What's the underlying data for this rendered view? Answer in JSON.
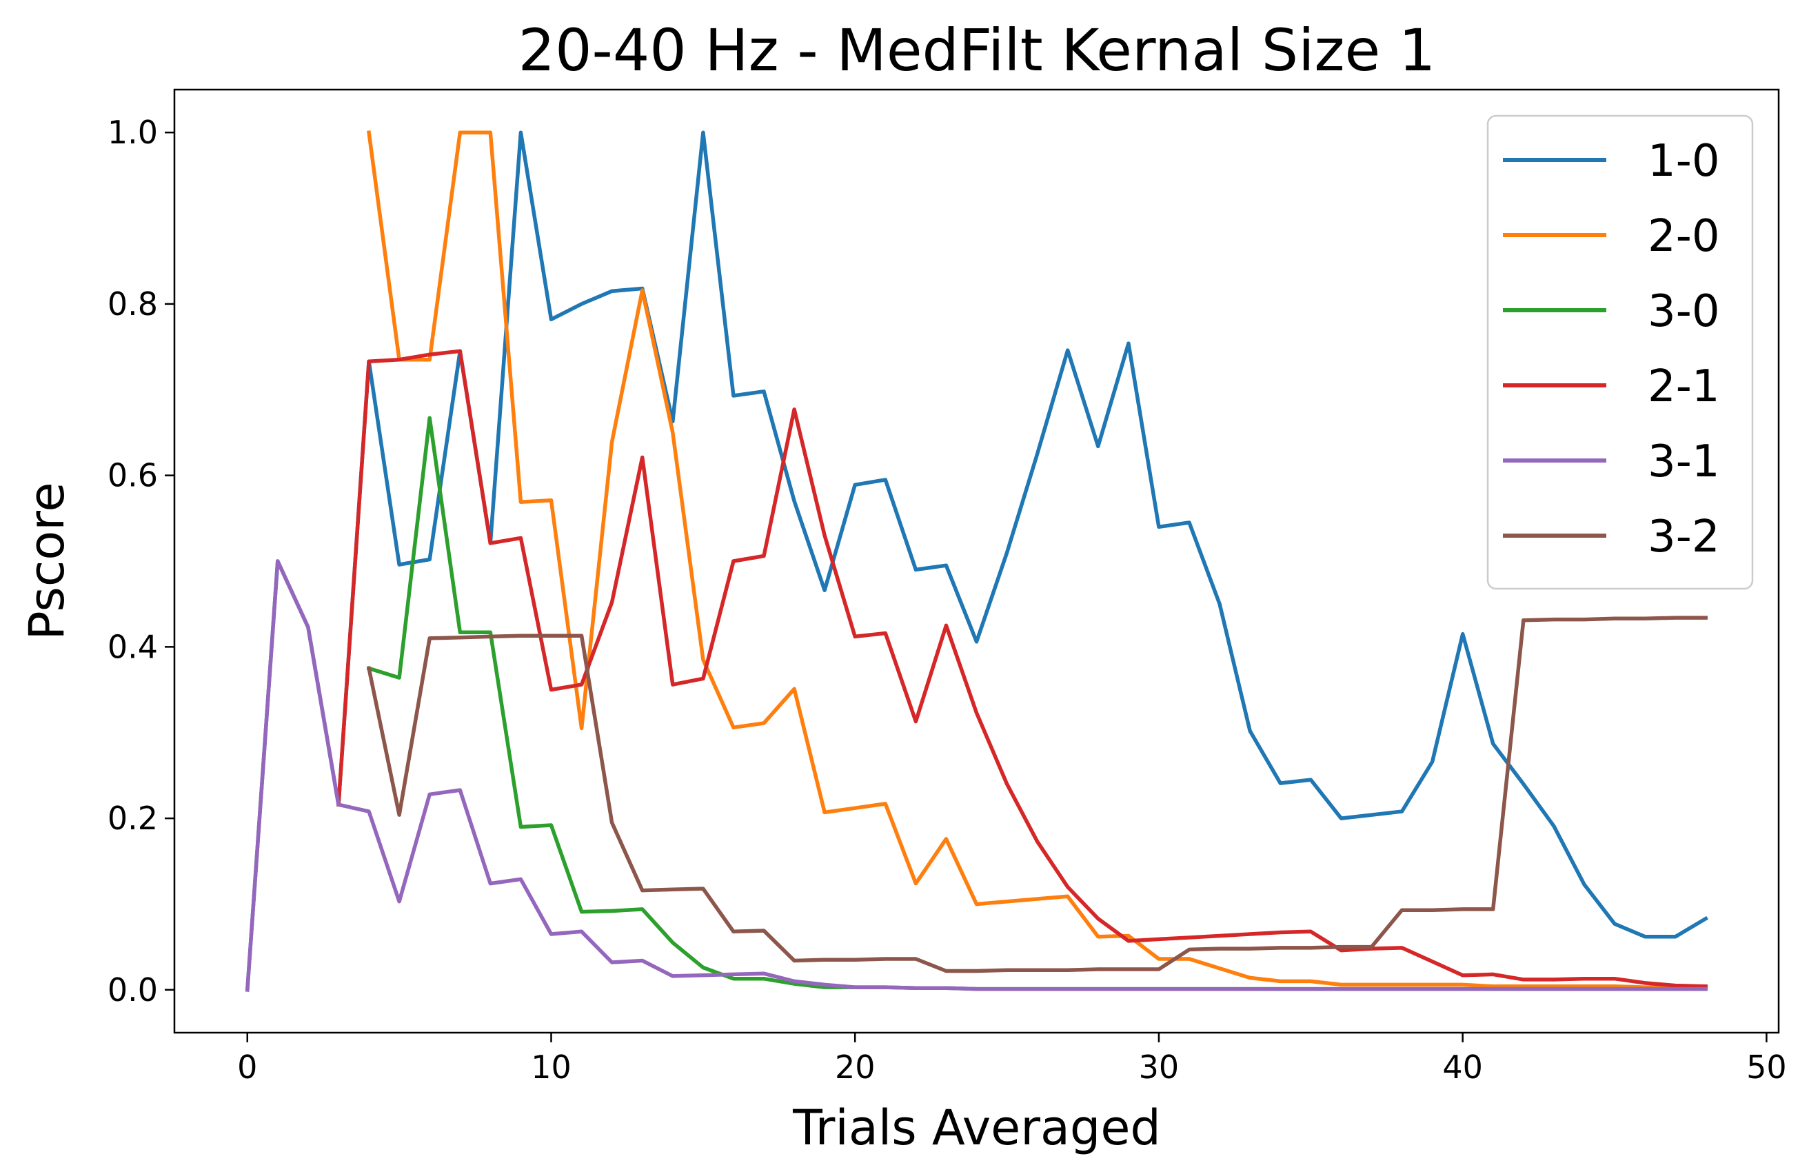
{
  "chart_data": {
    "type": "line",
    "title": "20-40 Hz - MedFilt Kernal Size 1",
    "xlabel": "Trials Averaged",
    "ylabel": "Pscore",
    "xlim": [
      -2.4,
      50.4
    ],
    "ylim": [
      -0.05,
      1.05
    ],
    "xticks": [
      0,
      10,
      20,
      30,
      40,
      50
    ],
    "yticks": [
      0.0,
      0.2,
      0.4,
      0.6,
      0.8,
      1.0
    ],
    "xtick_labels": [
      "0",
      "10",
      "20",
      "30",
      "40",
      "50"
    ],
    "ytick_labels": [
      "0.0",
      "0.2",
      "0.4",
      "0.6",
      "0.8",
      "1.0"
    ],
    "legend_position": "top-right",
    "series": [
      {
        "name": "1-0",
        "color": "#1f77b4",
        "x": [
          0,
          1,
          2,
          3,
          4,
          5,
          6,
          7,
          8,
          9,
          10,
          11,
          12,
          13,
          14,
          15,
          16,
          17,
          18,
          19,
          20,
          21,
          22,
          23,
          24,
          25,
          26,
          27,
          28,
          29,
          30,
          31,
          32,
          33,
          34,
          35,
          36,
          37,
          38,
          39,
          40,
          41,
          42,
          43,
          44,
          45,
          46,
          47,
          48
        ],
        "y": [
          0.0,
          0.5,
          0.423,
          0.216,
          0.733,
          0.496,
          0.502,
          0.745,
          0.521,
          1.0,
          0.782,
          0.8,
          0.815,
          0.818,
          0.663,
          1.0,
          0.693,
          0.698,
          0.57,
          0.466,
          0.589,
          0.595,
          0.49,
          0.495,
          0.406,
          0.51,
          0.625,
          0.746,
          0.634,
          0.754,
          0.54,
          0.545,
          0.45,
          0.302,
          0.241,
          0.245,
          0.2,
          0.204,
          0.208,
          0.266,
          0.415,
          0.287,
          0.24,
          0.191,
          0.123,
          0.077,
          0.062,
          0.062,
          0.083
        ]
      },
      {
        "name": "2-0",
        "color": "#ff7f0e",
        "x": [
          4,
          5,
          6,
          7,
          8,
          9,
          10,
          11,
          12,
          13,
          14,
          15,
          16,
          17,
          18,
          19,
          20,
          21,
          22,
          23,
          24,
          25,
          26,
          27,
          28,
          29,
          30,
          31,
          32,
          33,
          34,
          35,
          36,
          37,
          38,
          39,
          40,
          41,
          42,
          43,
          44,
          45,
          46,
          47,
          48
        ],
        "y": [
          1.0,
          0.735,
          0.735,
          1.0,
          1.0,
          0.569,
          0.571,
          0.305,
          0.639,
          0.816,
          0.65,
          0.385,
          0.306,
          0.311,
          0.351,
          0.207,
          0.212,
          0.217,
          0.124,
          0.176,
          0.1,
          0.103,
          0.106,
          0.109,
          0.062,
          0.063,
          0.036,
          0.036,
          0.025,
          0.014,
          0.01,
          0.01,
          0.006,
          0.006,
          0.006,
          0.006,
          0.006,
          0.004,
          0.004,
          0.004,
          0.004,
          0.004,
          0.003,
          0.003,
          0.003
        ]
      },
      {
        "name": "3-0",
        "color": "#2ca02c",
        "x": [
          4,
          5,
          6,
          7,
          8,
          9,
          10,
          11,
          12,
          13,
          14,
          15,
          16,
          17,
          18,
          19,
          20,
          21,
          22,
          23,
          24,
          25,
          26,
          27,
          28,
          29,
          30,
          31,
          32,
          33,
          34,
          35,
          36,
          37,
          38,
          39,
          40,
          41,
          42,
          43,
          44,
          45,
          46,
          47,
          48
        ],
        "y": [
          0.375,
          0.364,
          0.667,
          0.417,
          0.417,
          0.19,
          0.192,
          0.091,
          0.092,
          0.094,
          0.055,
          0.026,
          0.013,
          0.013,
          0.007,
          0.003,
          0.003,
          0.003,
          0.002,
          0.002,
          0.001,
          0.001,
          0.001,
          0.001,
          0.001,
          0.001,
          0.001,
          0.001,
          0.001,
          0.001,
          0.001,
          0.001,
          0.001,
          0.001,
          0.001,
          0.001,
          0.001,
          0.001,
          0.001,
          0.001,
          0.001,
          0.001,
          0.001,
          0.001,
          0.001
        ]
      },
      {
        "name": "2-1",
        "color": "#d62728",
        "x": [
          3,
          4,
          5,
          6,
          7,
          8,
          9,
          10,
          11,
          12,
          13,
          14,
          15,
          16,
          17,
          18,
          19,
          20,
          21,
          22,
          23,
          24,
          25,
          26,
          27,
          28,
          29,
          30,
          31,
          32,
          33,
          34,
          35,
          36,
          37,
          38,
          39,
          40,
          41,
          42,
          43,
          44,
          45,
          46,
          47,
          48
        ],
        "y": [
          0.216,
          0.733,
          0.735,
          0.741,
          0.745,
          0.521,
          0.527,
          0.35,
          0.356,
          0.452,
          0.621,
          0.356,
          0.363,
          0.5,
          0.506,
          0.677,
          0.53,
          0.412,
          0.416,
          0.313,
          0.425,
          0.323,
          0.24,
          0.173,
          0.12,
          0.083,
          0.057,
          0.059,
          0.061,
          0.063,
          0.065,
          0.067,
          0.068,
          0.046,
          0.048,
          0.049,
          0.033,
          0.017,
          0.018,
          0.012,
          0.012,
          0.013,
          0.013,
          0.008,
          0.005,
          0.004
        ]
      },
      {
        "name": "3-1",
        "color": "#9467bd",
        "x": [
          0,
          1,
          2,
          3,
          4,
          5,
          6,
          7,
          8,
          9,
          10,
          11,
          12,
          13,
          14,
          15,
          16,
          17,
          18,
          19,
          20,
          21,
          22,
          23,
          24,
          25,
          26,
          27,
          28,
          29,
          30,
          31,
          32,
          33,
          34,
          35,
          36,
          37,
          38,
          39,
          40,
          41,
          42,
          43,
          44,
          45,
          46,
          47,
          48
        ],
        "y": [
          0.0,
          0.5,
          0.423,
          0.216,
          0.208,
          0.103,
          0.228,
          0.233,
          0.124,
          0.129,
          0.065,
          0.068,
          0.032,
          0.034,
          0.016,
          0.017,
          0.018,
          0.019,
          0.01,
          0.006,
          0.003,
          0.003,
          0.002,
          0.002,
          0.001,
          0.001,
          0.001,
          0.001,
          0.001,
          0.001,
          0.001,
          0.001,
          0.001,
          0.001,
          0.001,
          0.001,
          0.001,
          0.001,
          0.001,
          0.001,
          0.001,
          0.001,
          0.001,
          0.001,
          0.001,
          0.001,
          0.001,
          0.001,
          0.001
        ]
      },
      {
        "name": "3-2",
        "color": "#8c564b",
        "x": [
          4,
          5,
          6,
          7,
          8,
          9,
          10,
          11,
          12,
          13,
          14,
          15,
          16,
          17,
          18,
          19,
          20,
          21,
          22,
          23,
          24,
          25,
          26,
          27,
          28,
          29,
          30,
          31,
          32,
          33,
          34,
          35,
          36,
          37,
          38,
          39,
          40,
          41,
          42,
          43,
          44,
          45,
          46,
          47,
          48
        ],
        "y": [
          0.375,
          0.204,
          0.41,
          0.411,
          0.412,
          0.413,
          0.413,
          0.413,
          0.195,
          0.116,
          0.117,
          0.118,
          0.068,
          0.069,
          0.034,
          0.035,
          0.035,
          0.036,
          0.036,
          0.022,
          0.022,
          0.023,
          0.023,
          0.023,
          0.024,
          0.024,
          0.024,
          0.047,
          0.048,
          0.048,
          0.049,
          0.049,
          0.05,
          0.05,
          0.093,
          0.093,
          0.094,
          0.094,
          0.431,
          0.432,
          0.432,
          0.433,
          0.433,
          0.434,
          0.434
        ]
      }
    ]
  }
}
